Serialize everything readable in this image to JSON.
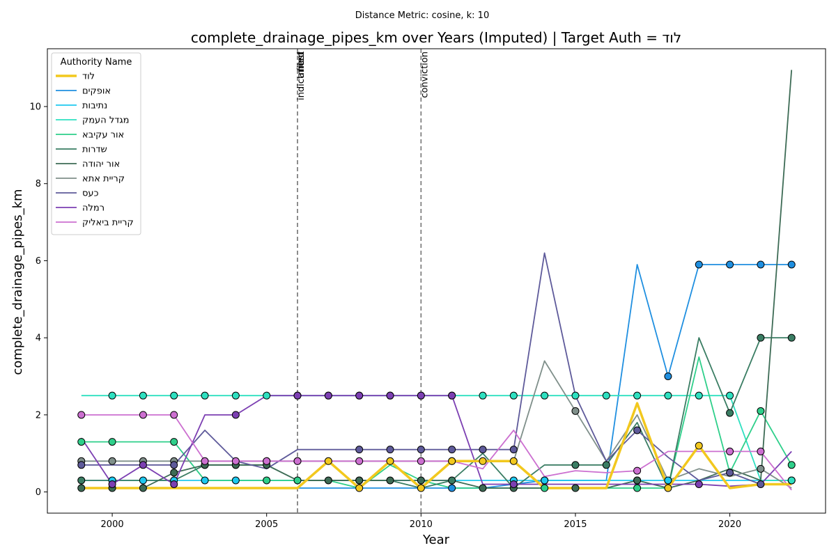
{
  "chart_data": {
    "type": "line",
    "suptitle": "Distance Metric: cosine, k: 10",
    "title": "complete_drainage_pipes_km over Years (Imputed) | Target Auth = לוד",
    "xlabel": "Year",
    "ylabel": "complete_drainage_pipes_km",
    "xlim": [
      1997.9,
      2023.1
    ],
    "ylim": [
      -0.55,
      11.5
    ],
    "xticks": [
      2000,
      2005,
      2010,
      2015,
      2020
    ],
    "yticks": [
      0,
      2,
      4,
      6,
      8,
      10
    ],
    "grid": false,
    "legend": {
      "title": "Authority Name",
      "placement": "top-left"
    },
    "events": [
      {
        "x": 2006,
        "label": "indictment"
      },
      {
        "x": 2006,
        "label": "filed"
      },
      {
        "x": 2006,
        "label": "arrest"
      },
      {
        "x": 2010,
        "label": "conviction"
      }
    ],
    "x": [
      1999,
      2000,
      2001,
      2002,
      2003,
      2004,
      2005,
      2006,
      2007,
      2008,
      2009,
      2010,
      2011,
      2012,
      2013,
      2014,
      2015,
      2016,
      2017,
      2018,
      2019,
      2020,
      2021,
      2022
    ],
    "series": [
      {
        "name": "לוד",
        "color": "#f2c81e",
        "target": true,
        "values": [
          0.1,
          0.1,
          0.1,
          0.1,
          0.1,
          0.1,
          0.1,
          0.1,
          0.8,
          0.1,
          0.8,
          0.1,
          0.8,
          0.8,
          0.8,
          0.1,
          0.1,
          0.1,
          2.3,
          0.1,
          1.2,
          0.1,
          0.2,
          0.2
        ],
        "imputed": [
          0,
          0,
          0,
          0,
          0,
          0,
          0,
          0,
          1,
          1,
          1,
          1,
          1,
          1,
          1,
          0,
          0,
          0,
          0,
          1,
          1,
          0,
          0,
          0
        ]
      },
      {
        "name": "אופקים",
        "color": "#1f8fe0",
        "values": [
          0.1,
          0.1,
          0.1,
          0.1,
          0.1,
          0.1,
          0.1,
          0.1,
          0.1,
          0.1,
          0.1,
          0.1,
          0.1,
          0.1,
          0.2,
          0.3,
          0.3,
          0.3,
          5.9,
          3.0,
          5.9,
          5.9,
          5.9,
          5.9
        ],
        "imputed": [
          0,
          0,
          0,
          0,
          0,
          0,
          0,
          0,
          0,
          0,
          0,
          0,
          1,
          0,
          0,
          1,
          0,
          0,
          0,
          1,
          1,
          1,
          1,
          1
        ]
      },
      {
        "name": "נתיבות",
        "color": "#1ec8ef",
        "values": [
          0.3,
          0.3,
          0.3,
          0.3,
          0.3,
          0.3,
          0.3,
          0.3,
          0.3,
          0.3,
          0.3,
          0.3,
          0.3,
          0.3,
          0.3,
          0.3,
          0.3,
          0.3,
          0.3,
          0.3,
          0.3,
          0.3,
          0.3,
          0.3
        ],
        "imputed": [
          0,
          1,
          1,
          1,
          1,
          1,
          0,
          0,
          0,
          0,
          0,
          0,
          0,
          0,
          1,
          1,
          0,
          0,
          1,
          1,
          0,
          0,
          0,
          1
        ]
      },
      {
        "name": "מגדל העמק",
        "color": "#2ee0c0",
        "values": [
          2.5,
          2.5,
          2.5,
          2.5,
          2.5,
          2.5,
          2.5,
          2.5,
          2.5,
          2.5,
          2.5,
          2.5,
          2.5,
          2.5,
          2.5,
          2.5,
          2.5,
          2.5,
          2.5,
          2.5,
          2.5,
          2.5,
          0.3,
          0.3
        ],
        "imputed": [
          0,
          1,
          1,
          1,
          1,
          1,
          1,
          1,
          1,
          1,
          1,
          1,
          1,
          1,
          1,
          1,
          1,
          1,
          1,
          1,
          1,
          1,
          0,
          1
        ]
      },
      {
        "name": "אור עקיבא",
        "color": "#2ecf8a",
        "values": [
          1.3,
          1.3,
          1.3,
          1.3,
          0.3,
          0.3,
          0.3,
          0.3,
          0.3,
          0.1,
          0.7,
          0.3,
          0.1,
          0.1,
          0.1,
          0.1,
          0.1,
          0.1,
          0.1,
          0.1,
          3.5,
          0.5,
          2.1,
          0.7
        ],
        "imputed": [
          1,
          1,
          0,
          1,
          0,
          0,
          1,
          1,
          0,
          0,
          0,
          0,
          0,
          0,
          0,
          1,
          0,
          0,
          1,
          0,
          0,
          0,
          1,
          1
        ]
      },
      {
        "name": "שדרות",
        "color": "#3a7d63",
        "values": [
          0.3,
          0.3,
          0.3,
          0.3,
          0.7,
          0.7,
          0.7,
          0.3,
          0.3,
          0.3,
          0.3,
          0.1,
          0.3,
          1.0,
          0.1,
          0.7,
          0.7,
          0.7,
          1.8,
          0.1,
          4.0,
          2.05,
          4.0,
          4.0
        ],
        "imputed": [
          1,
          0,
          0,
          0,
          1,
          1,
          0,
          0,
          0,
          1,
          0,
          0,
          1,
          0,
          0,
          0,
          1,
          1,
          0,
          0,
          0,
          1,
          1,
          1
        ]
      },
      {
        "name": "אור יהודה",
        "color": "#3d6b55",
        "values": [
          0.1,
          0.1,
          0.1,
          0.5,
          0.7,
          0.7,
          0.7,
          0.3,
          0.3,
          0.3,
          0.3,
          0.3,
          0.3,
          0.1,
          0.1,
          0.1,
          0.1,
          0.1,
          0.3,
          0.1,
          0.3,
          0.6,
          0.3,
          10.95
        ],
        "imputed": [
          1,
          1,
          1,
          1,
          1,
          1,
          1,
          0,
          1,
          1,
          1,
          1,
          0,
          1,
          1,
          0,
          1,
          0,
          1,
          0,
          0,
          0,
          0,
          0
        ]
      },
      {
        "name": "קריית אתא",
        "color": "#7f8f8a",
        "values": [
          0.8,
          0.8,
          0.8,
          0.8,
          0.8,
          0.8,
          0.8,
          0.8,
          0.8,
          0.8,
          0.8,
          0.8,
          0.8,
          0.8,
          0.8,
          3.4,
          2.1,
          0.8,
          2.0,
          0.3,
          0.6,
          0.4,
          0.6,
          0.1
        ],
        "imputed": [
          1,
          1,
          1,
          1,
          0,
          0,
          1,
          1,
          0,
          0,
          0,
          0,
          0,
          0,
          0,
          0,
          1,
          0,
          0,
          0,
          0,
          0,
          1,
          0
        ]
      },
      {
        "name": "כעס",
        "color": "#5e5a9a",
        "values": [
          0.7,
          0.7,
          0.7,
          0.7,
          1.6,
          0.8,
          0.6,
          1.1,
          1.1,
          1.1,
          1.1,
          1.1,
          1.1,
          1.1,
          1.1,
          6.2,
          2.5,
          0.8,
          1.6,
          0.9,
          0.3,
          0.5,
          0.2,
          0.2
        ],
        "imputed": [
          1,
          0,
          0,
          1,
          0,
          0,
          0,
          0,
          0,
          1,
          1,
          1,
          1,
          1,
          1,
          0,
          0,
          0,
          1,
          0,
          0,
          1,
          1,
          0
        ]
      },
      {
        "name": "רמלה",
        "color": "#7c3fb2",
        "values": [
          1.4,
          0.2,
          0.7,
          0.2,
          2.0,
          2.0,
          2.5,
          2.5,
          2.5,
          2.5,
          2.5,
          2.5,
          2.5,
          0.2,
          0.2,
          0.2,
          0.2,
          0.2,
          0.2,
          0.2,
          0.2,
          0.15,
          0.2,
          1.05
        ],
        "imputed": [
          0,
          1,
          1,
          1,
          0,
          1,
          0,
          1,
          1,
          1,
          1,
          1,
          1,
          0,
          1,
          0,
          0,
          0,
          0,
          0,
          1,
          0,
          0,
          0
        ]
      },
      {
        "name": "קריית ביאליק",
        "color": "#cc6fd0",
        "values": [
          2.0,
          2.0,
          2.0,
          2.0,
          0.8,
          0.8,
          0.8,
          0.8,
          0.8,
          0.8,
          0.8,
          0.8,
          0.8,
          0.6,
          1.6,
          0.4,
          0.55,
          0.5,
          0.55,
          1.05,
          1.05,
          1.05,
          1.05,
          0.05
        ],
        "imputed": [
          1,
          0,
          1,
          1,
          1,
          1,
          1,
          1,
          0,
          1,
          0,
          1,
          1,
          0,
          0,
          0,
          0,
          0,
          1,
          0,
          0,
          1,
          1,
          0
        ]
      }
    ]
  }
}
